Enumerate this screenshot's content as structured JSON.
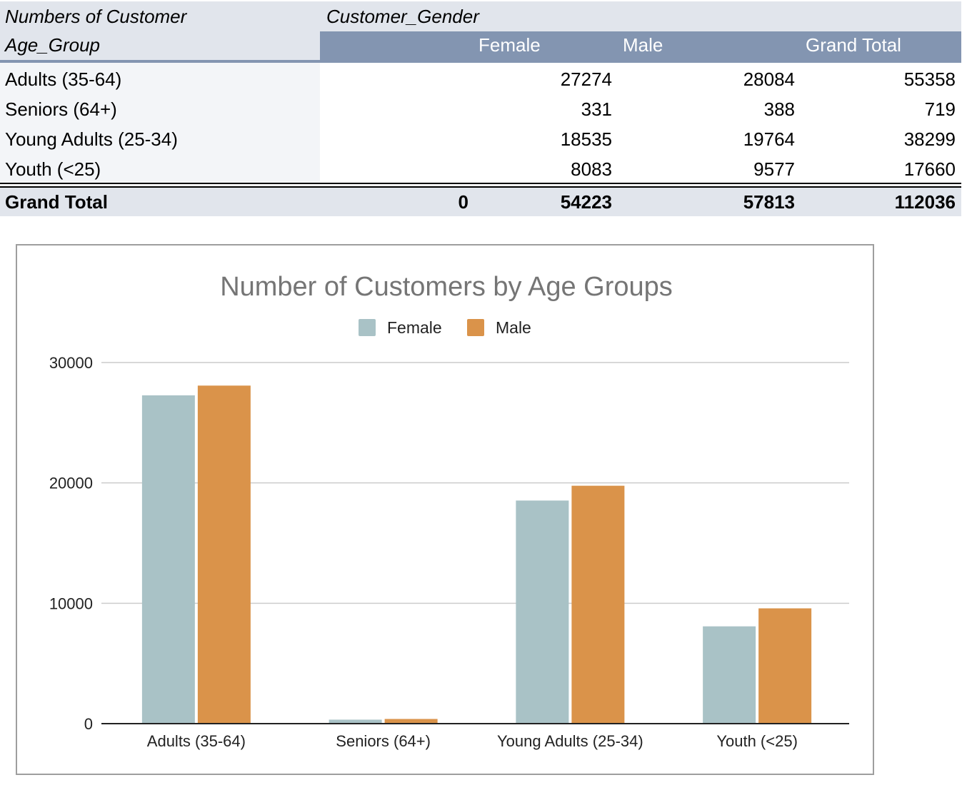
{
  "pivot": {
    "corner_label": "Numbers of Customer",
    "column_field": "Customer_Gender",
    "row_field": "Age_Group",
    "column_headers": [
      "Female",
      "Male",
      "Grand Total"
    ],
    "rows": [
      {
        "label": "Adults (35-64)",
        "female": "27274",
        "male": "28084",
        "total": "55358"
      },
      {
        "label": "Seniors (64+)",
        "female": "331",
        "male": "388",
        "total": "719"
      },
      {
        "label": "Young Adults (25-34)",
        "female": "18535",
        "male": "19764",
        "total": "38299"
      },
      {
        "label": "Youth (<25)",
        "female": "8083",
        "male": "9577",
        "total": "17660"
      }
    ],
    "grand_total": {
      "label": "Grand Total",
      "blank": "0",
      "female": "54223",
      "male": "57813",
      "total": "112036"
    }
  },
  "colors": {
    "header_blue": "#8395b1",
    "header_light": "#e1e5ec",
    "female": "#a9c2c6",
    "male": "#da934a"
  },
  "chart_data": {
    "type": "bar",
    "title": "Number of Customers by Age Groups",
    "categories": [
      "Adults (35-64)",
      "Seniors (64+)",
      "Young Adults (25-34)",
      "Youth (<25)"
    ],
    "series": [
      {
        "name": "Female",
        "values": [
          27274,
          331,
          18535,
          8083
        ],
        "color": "#a9c2c6"
      },
      {
        "name": "Male",
        "values": [
          28084,
          388,
          19764,
          9577
        ],
        "color": "#da934a"
      }
    ],
    "yticks": [
      "0",
      "10000",
      "20000",
      "30000"
    ],
    "ylim": [
      0,
      30000
    ],
    "legend": "top",
    "grid": true
  }
}
